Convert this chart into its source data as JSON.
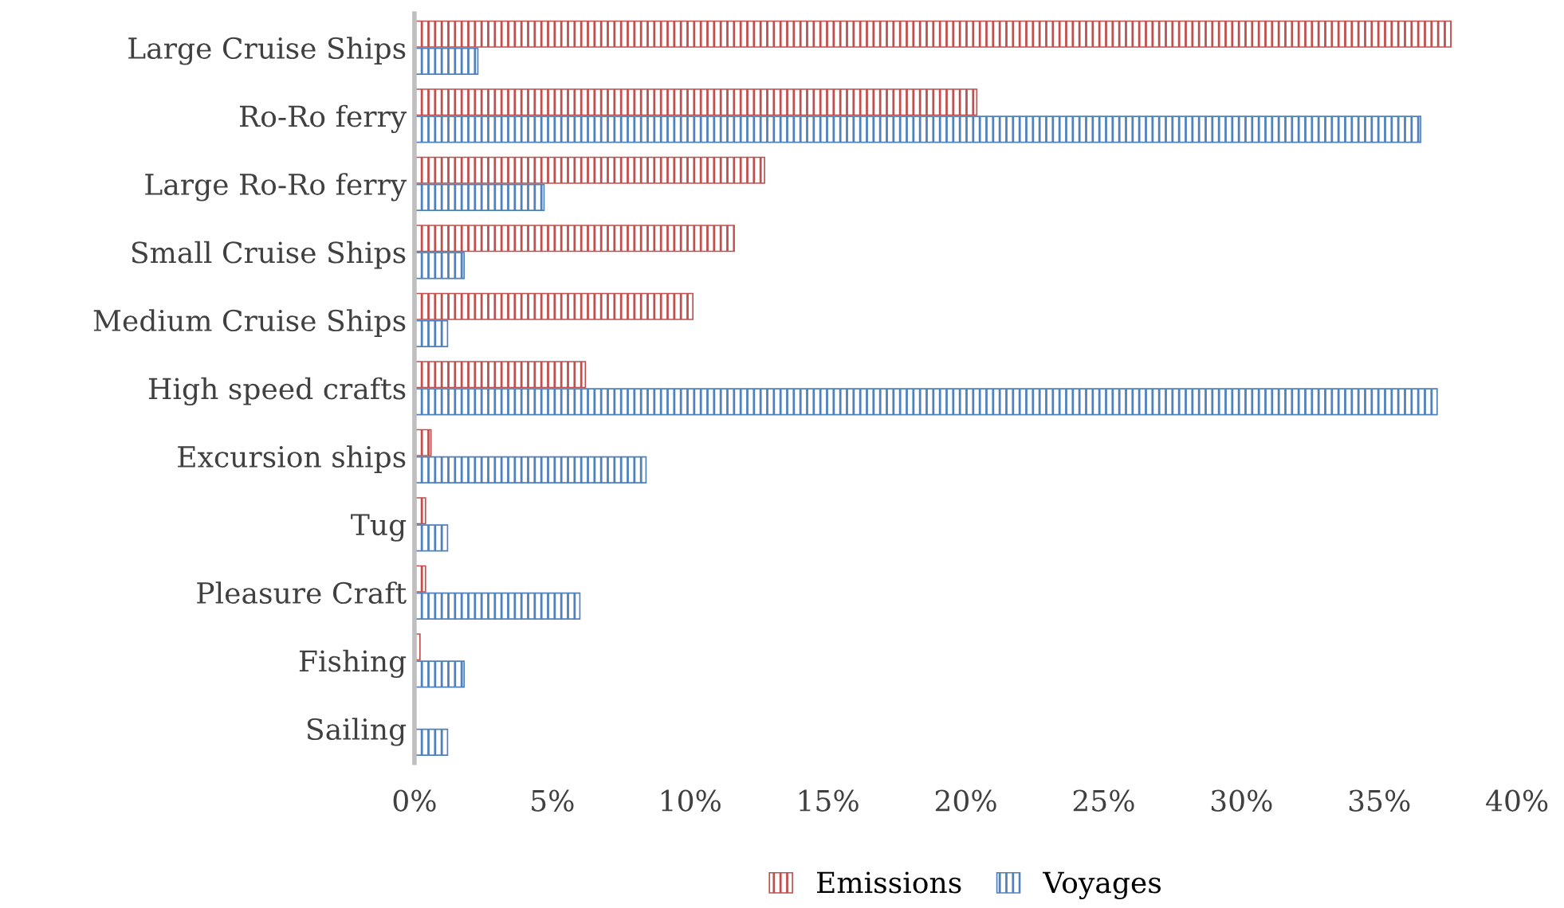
{
  "chart_data": {
    "type": "bar",
    "orientation": "horizontal",
    "categories": [
      "Large Cruise Ships",
      "Ro-Ro ferry",
      "Large Ro-Ro ferry",
      "Small Cruise Ships",
      "Medium Cruise Ships",
      "High speed crafts",
      "Excursion ships",
      "Tug",
      "Pleasure Craft",
      "Fishing",
      "Sailing"
    ],
    "series": [
      {
        "name": "Emissions",
        "color": "#c0504d",
        "values": [
          37.6,
          20.4,
          12.7,
          11.6,
          10.1,
          6.2,
          0.6,
          0.4,
          0.4,
          0.2,
          null
        ]
      },
      {
        "name": "Voyages",
        "color": "#4f81bd",
        "values": [
          2.3,
          36.5,
          4.7,
          1.8,
          1.2,
          37.1,
          8.4,
          1.2,
          6.0,
          1.8,
          1.2
        ]
      }
    ],
    "xlim": [
      0,
      40
    ],
    "xticks": [
      {
        "value": 0,
        "label": "0%"
      },
      {
        "value": 5,
        "label": "5%"
      },
      {
        "value": 10,
        "label": "10%"
      },
      {
        "value": 15,
        "label": "15%"
      },
      {
        "value": 20,
        "label": "20%"
      },
      {
        "value": 25,
        "label": "25%"
      },
      {
        "value": 30,
        "label": "30%"
      },
      {
        "value": 35,
        "label": "35%"
      },
      {
        "value": 40,
        "label": "40%"
      }
    ],
    "grid": false,
    "legend": "bottom"
  }
}
